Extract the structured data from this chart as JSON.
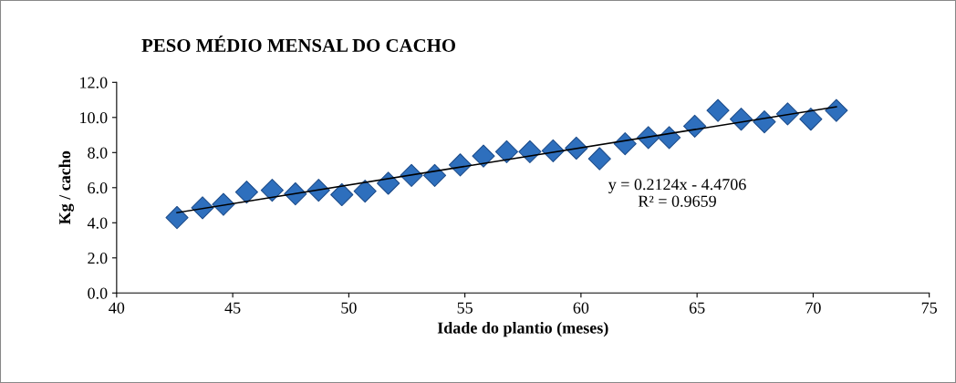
{
  "chart_data": {
    "type": "scatter",
    "title": "PESO MÉDIO MENSAL DO CACHO",
    "xlabel": "Idade do plantio (meses)",
    "ylabel": "Kg / cacho",
    "xlim": [
      40,
      75
    ],
    "xticks": [
      40,
      45,
      50,
      55,
      60,
      65,
      70,
      75
    ],
    "ylim": [
      0,
      12
    ],
    "yticks": [
      {
        "value": 0,
        "label": "0.0"
      },
      {
        "value": 2,
        "label": "2.0"
      },
      {
        "value": 4,
        "label": "4.0"
      },
      {
        "value": 6,
        "label": "6.0"
      },
      {
        "value": 8,
        "label": "8.0"
      },
      {
        "value": 10,
        "label": "10.0"
      },
      {
        "value": 12,
        "label": "12.0"
      }
    ],
    "grid": false,
    "legend": false,
    "annotations": [
      "y = 0.2124x - 4.4706",
      "R² = 0.9659"
    ],
    "series": [
      {
        "marker": "diamond",
        "color": "#2e6fbd",
        "x": [
          42.6,
          43.7,
          44.6,
          45.6,
          46.7,
          47.7,
          48.7,
          49.7,
          50.7,
          51.7,
          52.7,
          53.7,
          54.8,
          55.8,
          56.8,
          57.8,
          58.8,
          59.8,
          60.8,
          61.9,
          62.9,
          63.8,
          64.9,
          65.9,
          66.9,
          67.9,
          68.9,
          69.9,
          71.0
        ],
        "values": [
          4.3,
          4.85,
          5.05,
          5.75,
          5.85,
          5.65,
          5.85,
          5.6,
          5.8,
          6.25,
          6.7,
          6.7,
          7.3,
          7.8,
          8.05,
          8.05,
          8.1,
          8.25,
          7.65,
          8.5,
          8.85,
          8.85,
          9.5,
          10.4,
          9.9,
          9.75,
          10.2,
          9.9,
          10.4
        ]
      },
      {
        "type": "line",
        "marker": "none",
        "color": "#000000",
        "x": [
          42.6,
          71.0
        ],
        "values": [
          4.58,
          10.61
        ]
      }
    ]
  }
}
